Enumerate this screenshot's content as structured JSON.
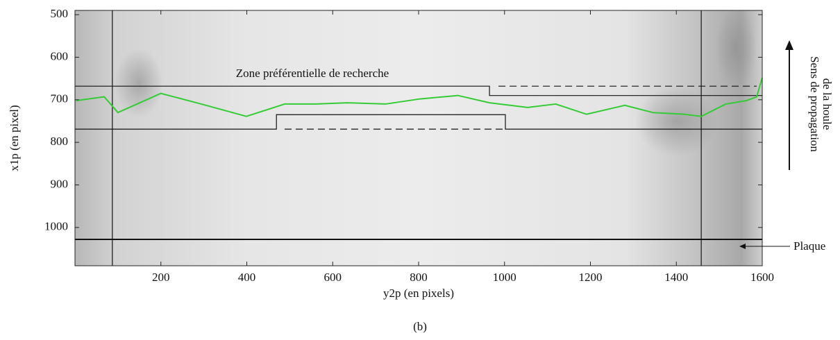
{
  "chart_data": {
    "type": "image-overlay",
    "caption": "(b)",
    "x_label": "y2p (en pixels)",
    "y_label": "x1p (en pixel)",
    "xlim": [
      0,
      1600
    ],
    "ylim": [
      490,
      1090
    ],
    "y_inverted": true,
    "xticks": [
      200,
      400,
      600,
      800,
      1000,
      1200,
      1400,
      1600
    ],
    "yticks": [
      500,
      600,
      700,
      800,
      900,
      1000
    ],
    "series": [
      {
        "color": "#33cc33",
        "x": [
          3,
          68,
          100,
          200,
          294,
          399,
          488,
          561,
          634,
          723,
          803,
          892,
          965,
          1054,
          1119,
          1191,
          1280,
          1345,
          1418,
          1458,
          1515,
          1563,
          1587,
          1600
        ],
        "values": [
          702,
          693,
          730,
          685,
          710,
          739,
          710,
          710,
          707,
          710,
          698,
          690,
          707,
          718,
          710,
          734,
          713,
          730,
          734,
          739,
          710,
          702,
          693,
          648
        ]
      }
    ],
    "lines": [
      {
        "x": [
          0,
          965,
          965,
          1600
        ],
        "y": [
          668,
          668,
          690,
          690
        ],
        "dashed": false,
        "width": 1.2
      },
      {
        "x": [
          0,
          469,
          469,
          1002,
          1002,
          1600
        ],
        "y": [
          769,
          769,
          735,
          735,
          769,
          769
        ],
        "dashed": false,
        "width": 1.2
      },
      {
        "x": [
          986,
          1587
        ],
        "y": [
          668,
          668
        ],
        "dashed": true,
        "width": 1.2
      },
      {
        "x": [
          488,
          997
        ],
        "y": [
          769,
          769
        ],
        "dashed": true,
        "width": 1.2
      },
      {
        "x": [
          87,
          87
        ],
        "y": [
          490,
          1090
        ],
        "dashed": false,
        "width": 1.2
      },
      {
        "x": [
          1458,
          1458
        ],
        "y": [
          490,
          1090
        ],
        "dashed": false,
        "width": 1.2
      },
      {
        "x": [
          0,
          1600
        ],
        "y": [
          1028,
          1028
        ],
        "dashed": false,
        "width": 2
      }
    ],
    "annotations": {
      "zone": "Zone préférentielle de recherche",
      "propagation": [
        "Sens de propagation",
        "de la houle"
      ],
      "plate": "Plaque"
    }
  }
}
